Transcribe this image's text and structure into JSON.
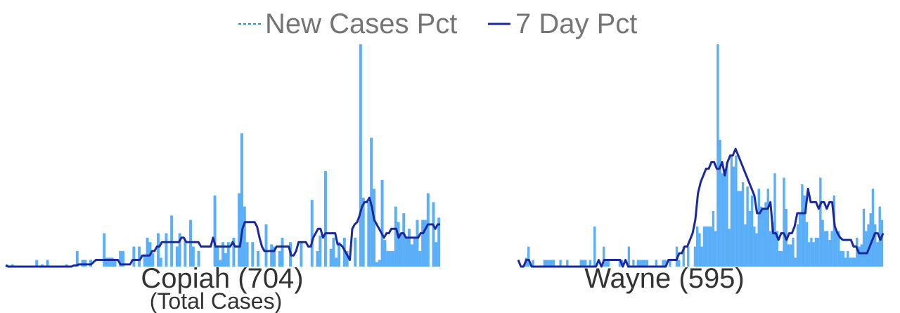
{
  "legend": {
    "new_cases_label": "New Cases Pct",
    "seven_day_label": "7 Day Pct"
  },
  "colors": {
    "bar": "#5aaff8",
    "line": "#1a2a9e",
    "legend_dash": "#2a8fd8"
  },
  "chart_data": [
    {
      "type": "bar",
      "title": "Copiah (704)",
      "subtitle": "(Total Cases)",
      "ylim": [
        0,
        10
      ],
      "series": [
        {
          "name": "New Cases Pct",
          "values": [
            0.1,
            0,
            0.1,
            0,
            0,
            0,
            0,
            0,
            0,
            0,
            0,
            0.3,
            0,
            0.1,
            0,
            0.3,
            0,
            0,
            0,
            0,
            0,
            0,
            0.1,
            0,
            0,
            0,
            0.7,
            0,
            0.3,
            0.3,
            0,
            0.3,
            0,
            0,
            0,
            0,
            1.5,
            0.4,
            0.4,
            0.4,
            0.3,
            0,
            0.7,
            0.7,
            0,
            0,
            0,
            0.9,
            0,
            0.9,
            0,
            0.5,
            1.3,
            1.1,
            0.6,
            0,
            1.5,
            0.4,
            0,
            1.5,
            0,
            2.3,
            0,
            0.9,
            1.5,
            0,
            1.2,
            0,
            2.1,
            0.9,
            0,
            0.7,
            0,
            0,
            0,
            0,
            0,
            3.2,
            0.9,
            0.3,
            1.1,
            0.6,
            1.1,
            0,
            1.3,
            0,
            3.3,
            6.0,
            2.7,
            1.1,
            0,
            1.1,
            0,
            0.7,
            0,
            0,
            1.9,
            0,
            1.0,
            0.9,
            0,
            0.7,
            1.3,
            0,
            0,
            1.1,
            0,
            0,
            0,
            1.1,
            0,
            0,
            0,
            3.0,
            0,
            0.7,
            1.4,
            0,
            4.3,
            0,
            0.8,
            1.3,
            0.4,
            1.1,
            0,
            1.3,
            0.7,
            0,
            0,
            1.3,
            0,
            10,
            3.1,
            0,
            2.9,
            5.8,
            3.5,
            0.2,
            0.3,
            3.9,
            1.2,
            0.7,
            0.7,
            0.7,
            2.7,
            2.0,
            1.5,
            2.4,
            1.3,
            1.7,
            1.0,
            1.3,
            2.1,
            0.7,
            2.1,
            2.1,
            3.3,
            0,
            2.9,
            1.1,
            2.2
          ]
        },
        {
          "name": "7 Day Pct",
          "values": [
            0.05,
            0,
            0,
            0,
            0,
            0,
            0,
            0,
            0,
            0,
            0,
            0,
            0,
            0,
            0,
            0,
            0,
            0,
            0,
            0,
            0,
            0,
            0,
            0,
            0,
            0,
            0,
            0,
            0.05,
            0.05,
            0.1,
            0.1,
            0.1,
            0.1,
            0.1,
            0.1,
            0.2,
            0.3,
            0.3,
            0.3,
            0.3,
            0.3,
            0.3,
            0.3,
            0.3,
            0.3,
            0.3,
            0.1,
            0.1,
            0.1,
            0.1,
            0.1,
            0.3,
            0.3,
            0.3,
            0.3,
            0.5,
            0.5,
            0.5,
            0.5,
            0.7,
            0.7,
            0.9,
            0.9,
            1.1,
            1.1,
            1.1,
            1.1,
            1.1,
            1.1,
            1.1,
            1.1,
            1.3,
            1.3,
            1.1,
            1.1,
            1.1,
            1.1,
            1.1,
            1.1,
            0.9,
            0.9,
            0.9,
            0.9,
            0.9,
            1.3,
            0.9,
            0.9,
            0.9,
            0.9,
            0.9,
            0.9,
            0.9,
            1.1,
            0.9,
            0.9,
            0.9,
            1.7,
            2.0,
            2.0,
            2.0,
            2.0,
            2.0,
            1.8,
            1.3,
            0.9,
            0.7,
            0.7,
            0.7,
            0.7,
            0.7,
            0.9,
            0.9,
            0.9,
            0.9,
            0.9,
            0.9,
            0.5,
            0.5,
            0.7,
            1.1,
            1.1,
            1.1,
            1.1,
            0.9,
            0.9,
            1.3,
            1.5,
            1.7,
            1.7,
            1.3,
            1.5,
            1.5,
            1.5,
            1.5,
            1.5,
            1.0,
            1.0,
            0.9,
            0.7,
            0.5,
            0.3,
            1.7,
            1.9,
            2.0,
            2.3,
            2.7,
            2.9,
            2.9,
            3.1,
            2.7,
            2.1,
            1.9,
            1.7,
            1.5,
            1.3,
            1.5,
            1.5,
            1.7,
            1.7,
            1.7,
            1.3,
            1.5,
            1.5,
            1.3,
            1.3,
            1.3,
            1.3,
            1.3,
            1.3,
            1.5,
            1.5,
            1.7,
            1.9,
            1.9,
            1.9,
            1.7,
            1.9,
            1.9
          ]
        }
      ]
    },
    {
      "type": "bar",
      "title": "Wayne (595)",
      "ylim": [
        0,
        10
      ],
      "series": [
        {
          "name": "New Cases Pct",
          "values": [
            0,
            0,
            0,
            0.4,
            0.9,
            0,
            0.3,
            0,
            0,
            0,
            0,
            0.3,
            0.3,
            0.3,
            0.3,
            0.3,
            0,
            0,
            0.3,
            0,
            0,
            0.3,
            0,
            0,
            0,
            0,
            0,
            0.3,
            0.3,
            0.3,
            0,
            0.3,
            0,
            1.8,
            0,
            0,
            0,
            0.9,
            0.3,
            0.3,
            0,
            0,
            0,
            0,
            0.3,
            0.3,
            0,
            0,
            0.9,
            0,
            0.3,
            0,
            0.3,
            0.3,
            0.3,
            0.3,
            0.3,
            0,
            0,
            0,
            0.3,
            0,
            0,
            0.3,
            0.3,
            0,
            0.3,
            0,
            0,
            0.9,
            0.3,
            0,
            0.9,
            0,
            0.9,
            0,
            0,
            0.9,
            1.8,
            1.5,
            0.9,
            1.8,
            1.8,
            1.8,
            1.8,
            2.5,
            1.6,
            10,
            5.7,
            4.2,
            4.4,
            4.7,
            1.7,
            5.0,
            4.5,
            5.0,
            3.4,
            3.4,
            3.8,
            1.9,
            3.6,
            2.5,
            3.2,
            1.8,
            1.5,
            3.5,
            2.7,
            2.6,
            2.9,
            3.5,
            1.6,
            2.0,
            4.2,
            1.6,
            0.7,
            0.7,
            4.0,
            2.6,
            1.0,
            1.0,
            1.3,
            0.4,
            1.9,
            2.4,
            3.7,
            3.2,
            2.0,
            1.1,
            1.3,
            1.1,
            1.3,
            1.3,
            4.0,
            2.1,
            1.6,
            1.6,
            1.2,
            1.6,
            3.2,
            1.6,
            1.6,
            0.7,
            0.7,
            0.4,
            0.7,
            0.4,
            0.4,
            0.4,
            1.3,
            0.9,
            1.0,
            2.6,
            1.6,
            1.9,
            2.4,
            3.5,
            1.9,
            1.1,
            2.7,
            2.1
          ]
        },
        {
          "name": "7 Day Pct",
          "values": [
            0.3,
            0,
            0,
            0.3,
            0.3,
            0,
            0,
            0,
            0,
            0,
            0,
            0,
            0,
            0,
            0,
            0,
            0,
            0,
            0,
            0,
            0,
            0,
            0,
            0,
            0,
            0,
            0,
            0,
            0,
            0,
            0.3,
            0,
            0.3,
            0.3,
            0.3,
            0.3,
            0.3,
            0.3,
            0.3,
            0,
            0.3,
            0,
            0,
            0,
            0,
            0,
            0,
            0,
            0,
            0,
            0,
            0,
            0,
            0,
            0,
            0,
            0.3,
            0.3,
            0.3,
            0.3,
            0.6,
            0.6,
            0.9,
            0.9,
            1.2,
            1.5,
            2.1,
            3.3,
            3.8,
            4.1,
            4.4,
            4.4,
            4.7,
            4.7,
            4.4,
            4.4,
            4.7,
            4.1,
            4.7,
            5.0,
            5.0,
            5.3,
            5.0,
            4.7,
            4.4,
            4.1,
            3.8,
            3.5,
            3.2,
            2.4,
            2.4,
            2.6,
            2.6,
            2.6,
            2.9,
            1.5,
            1.5,
            1.2,
            1.5,
            1.5,
            1.2,
            1.5,
            1.5,
            1.8,
            2.4,
            2.4,
            2.4,
            2.4,
            3.5,
            2.9,
            2.9,
            2.9,
            2.6,
            2.9,
            2.9,
            2.6,
            2.9,
            2.9,
            1.8,
            1.5,
            1.3,
            1.2,
            1.2,
            1.2,
            1.2,
            0.9,
            0.9,
            0.6,
            0.6,
            0.6,
            0.6,
            0.9,
            1.2,
            1.5,
            1.5,
            1.2,
            1.5
          ]
        }
      ]
    }
  ]
}
